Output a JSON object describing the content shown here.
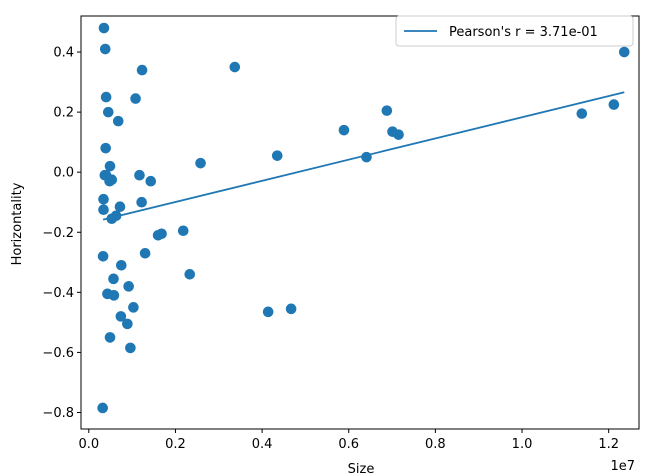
{
  "chart_data": {
    "type": "scatter",
    "xlabel": "Size",
    "ylabel": "Horizontality",
    "x_offset_label": "1e7",
    "xlim": [
      -180000,
      12700000
    ],
    "ylim": [
      -0.855,
      0.52
    ],
    "x_ticks": [
      0,
      2000000,
      4000000,
      6000000,
      8000000,
      10000000,
      12000000
    ],
    "x_tick_labels": [
      "0.0",
      "0.2",
      "0.4",
      "0.6",
      "0.8",
      "1.0",
      "1.2"
    ],
    "y_ticks": [
      -0.8,
      -0.6,
      -0.4,
      -0.2,
      0.0,
      0.2,
      0.4
    ],
    "y_tick_labels": [
      "−0.8",
      "−0.6",
      "−0.4",
      "−0.2",
      "0.0",
      "0.2",
      "0.4"
    ],
    "grid": false,
    "legend_position": "top-right",
    "color": "#1f77b4",
    "series": [
      {
        "name": "Pearson's r = 3.71e-01",
        "kind": "line",
        "x": [
          330000,
          12360000
        ],
        "y": [
          -0.158,
          0.266
        ]
      },
      {
        "kind": "scatter",
        "x": [
          350000,
          380000,
          400000,
          1230000,
          3370000,
          12360000,
          390000,
          450000,
          1080000,
          680000,
          6880000,
          5890000,
          7010000,
          7150000,
          11380000,
          12120000,
          400000,
          4350000,
          6410000,
          2580000,
          490000,
          370000,
          1170000,
          530000,
          480000,
          1430000,
          340000,
          1220000,
          720000,
          340000,
          630000,
          530000,
          2180000,
          1680000,
          1600000,
          1300000,
          330000,
          750000,
          570000,
          2330000,
          920000,
          430000,
          580000,
          1030000,
          4140000,
          4670000,
          740000,
          890000,
          490000,
          960000,
          320000
        ],
        "y": [
          0.48,
          0.41,
          0.25,
          0.34,
          0.35,
          0.4,
          0.08,
          0.2,
          0.245,
          0.17,
          0.205,
          0.14,
          0.135,
          0.125,
          0.195,
          0.225,
          -0.01,
          0.055,
          0.05,
          0.03,
          0.02,
          -0.01,
          -0.01,
          -0.025,
          -0.03,
          -0.03,
          -0.09,
          -0.1,
          -0.115,
          -0.125,
          -0.145,
          -0.155,
          -0.195,
          -0.205,
          -0.21,
          -0.27,
          -0.28,
          -0.31,
          -0.355,
          -0.34,
          -0.38,
          -0.405,
          -0.41,
          -0.45,
          -0.465,
          -0.455,
          -0.48,
          -0.505,
          -0.55,
          -0.585,
          -0.785
        ]
      }
    ]
  }
}
